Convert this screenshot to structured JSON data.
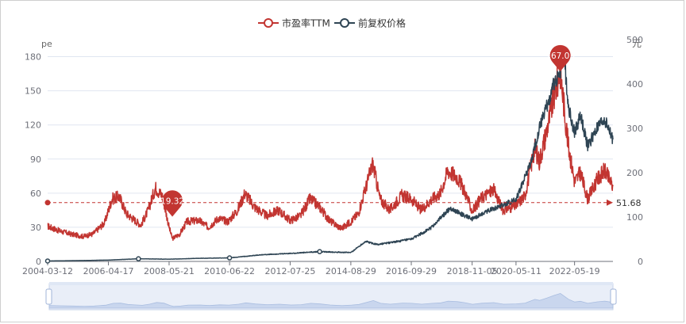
{
  "legend": {
    "items": [
      {
        "label": "市盈率TTM",
        "color": "#c23531"
      },
      {
        "label": "前复权价格",
        "color": "#2f4554"
      }
    ]
  },
  "axes": {
    "left_unit": "pe",
    "right_unit": "元"
  },
  "markers": {
    "max_label": "167.03",
    "min_label": "19.32",
    "avg_label": "51.68"
  },
  "chart_data": {
    "type": "line",
    "x_tick_labels": [
      "2004-03-12",
      "2006-04-17",
      "2008-05-21",
      "2010-06-22",
      "2012-07-25",
      "2014-08-29",
      "2016-09-29",
      "2018-11-05",
      "2020-05-11",
      "2022-05-19"
    ],
    "x_range": [
      "2004-03-12",
      "2023-09-15"
    ],
    "y_left": {
      "label": "pe",
      "range": [
        0,
        195
      ],
      "ticks": [
        0,
        30,
        60,
        90,
        120,
        150,
        180
      ]
    },
    "y_right": {
      "label": "元",
      "range": [
        0,
        500
      ],
      "ticks": [
        0,
        100,
        200,
        300,
        400,
        500
      ]
    },
    "grid": true,
    "legend_position": "top-center",
    "series": [
      {
        "name": "市盈率TTM",
        "axis": "left",
        "color": "#c23531",
        "points": [
          [
            "2004-03-12",
            31
          ],
          [
            "2004-08-01",
            27
          ],
          [
            "2005-01-01",
            24
          ],
          [
            "2005-06-01",
            22
          ],
          [
            "2005-10-01",
            24
          ],
          [
            "2006-03-01",
            34
          ],
          [
            "2006-06-01",
            55
          ],
          [
            "2006-09-01",
            57
          ],
          [
            "2006-12-01",
            42
          ],
          [
            "2007-03-01",
            37
          ],
          [
            "2007-06-01",
            32
          ],
          [
            "2007-09-01",
            45
          ],
          [
            "2007-12-01",
            65
          ],
          [
            "2008-03-01",
            57
          ],
          [
            "2008-05-21",
            30
          ],
          [
            "2008-07-01",
            20
          ],
          [
            "2008-10-01",
            24
          ],
          [
            "2009-01-01",
            35
          ],
          [
            "2009-06-01",
            36
          ],
          [
            "2009-10-01",
            30
          ],
          [
            "2010-02-01",
            38
          ],
          [
            "2010-06-01",
            35
          ],
          [
            "2010-10-01",
            45
          ],
          [
            "2011-01-01",
            60
          ],
          [
            "2011-05-01",
            48
          ],
          [
            "2011-10-01",
            40
          ],
          [
            "2012-03-01",
            45
          ],
          [
            "2012-07-25",
            36
          ],
          [
            "2012-12-01",
            40
          ],
          [
            "2013-04-01",
            55
          ],
          [
            "2013-08-01",
            48
          ],
          [
            "2013-12-01",
            36
          ],
          [
            "2014-05-01",
            29
          ],
          [
            "2014-08-29",
            35
          ],
          [
            "2014-12-01",
            42
          ],
          [
            "2015-06-01",
            86
          ],
          [
            "2015-09-01",
            55
          ],
          [
            "2016-01-01",
            45
          ],
          [
            "2016-06-01",
            58
          ],
          [
            "2016-09-29",
            55
          ],
          [
            "2017-02-01",
            45
          ],
          [
            "2017-06-01",
            54
          ],
          [
            "2017-10-01",
            60
          ],
          [
            "2018-01-01",
            80
          ],
          [
            "2018-05-01",
            74
          ],
          [
            "2018-08-01",
            62
          ],
          [
            "2018-11-05",
            44
          ],
          [
            "2019-03-01",
            56
          ],
          [
            "2019-08-01",
            63
          ],
          [
            "2019-12-01",
            45
          ],
          [
            "2020-05-11",
            49
          ],
          [
            "2020-09-01",
            58
          ],
          [
            "2021-01-01",
            100
          ],
          [
            "2021-03-01",
            88
          ],
          [
            "2021-06-01",
            115
          ],
          [
            "2021-09-01",
            145
          ],
          [
            "2021-11-20",
            167
          ],
          [
            "2022-01-01",
            140
          ],
          [
            "2022-03-01",
            102
          ],
          [
            "2022-05-19",
            70
          ],
          [
            "2022-08-01",
            78
          ],
          [
            "2022-11-01",
            55
          ],
          [
            "2023-03-01",
            72
          ],
          [
            "2023-06-01",
            80
          ],
          [
            "2023-09-15",
            66
          ]
        ]
      },
      {
        "name": "前复权价格",
        "axis": "right",
        "color": "#2f4554",
        "points": [
          [
            "2004-03-12",
            1
          ],
          [
            "2005-06-01",
            2
          ],
          [
            "2006-04-17",
            3
          ],
          [
            "2007-05-01",
            6
          ],
          [
            "2008-05-21",
            5
          ],
          [
            "2009-06-01",
            7
          ],
          [
            "2010-06-22",
            8
          ],
          [
            "2011-08-01",
            15
          ],
          [
            "2012-07-25",
            18
          ],
          [
            "2013-08-01",
            22
          ],
          [
            "2014-08-29",
            20
          ],
          [
            "2015-03-01",
            45
          ],
          [
            "2015-08-01",
            38
          ],
          [
            "2016-09-29",
            50
          ],
          [
            "2017-06-01",
            75
          ],
          [
            "2018-02-01",
            120
          ],
          [
            "2018-11-05",
            95
          ],
          [
            "2019-06-01",
            115
          ],
          [
            "2020-05-11",
            140
          ],
          [
            "2020-12-01",
            230
          ],
          [
            "2021-03-01",
            300
          ],
          [
            "2021-06-01",
            350
          ],
          [
            "2021-09-01",
            400
          ],
          [
            "2021-11-20",
            430
          ],
          [
            "2022-01-01",
            480
          ],
          [
            "2022-03-01",
            350
          ],
          [
            "2022-05-19",
            290
          ],
          [
            "2022-08-01",
            330
          ],
          [
            "2022-11-01",
            260
          ],
          [
            "2023-03-01",
            300
          ],
          [
            "2023-06-01",
            320
          ],
          [
            "2023-09-15",
            275
          ]
        ]
      }
    ],
    "mark_points": [
      {
        "series": "市盈率TTM",
        "type": "max",
        "date": "2021-11-20",
        "value": 167.03
      },
      {
        "series": "市盈率TTM",
        "type": "min",
        "date": "2008-07-01",
        "value": 19.32
      }
    ],
    "mark_line": {
      "series": "市盈率TTM",
      "type": "average",
      "value": 51.68
    }
  }
}
